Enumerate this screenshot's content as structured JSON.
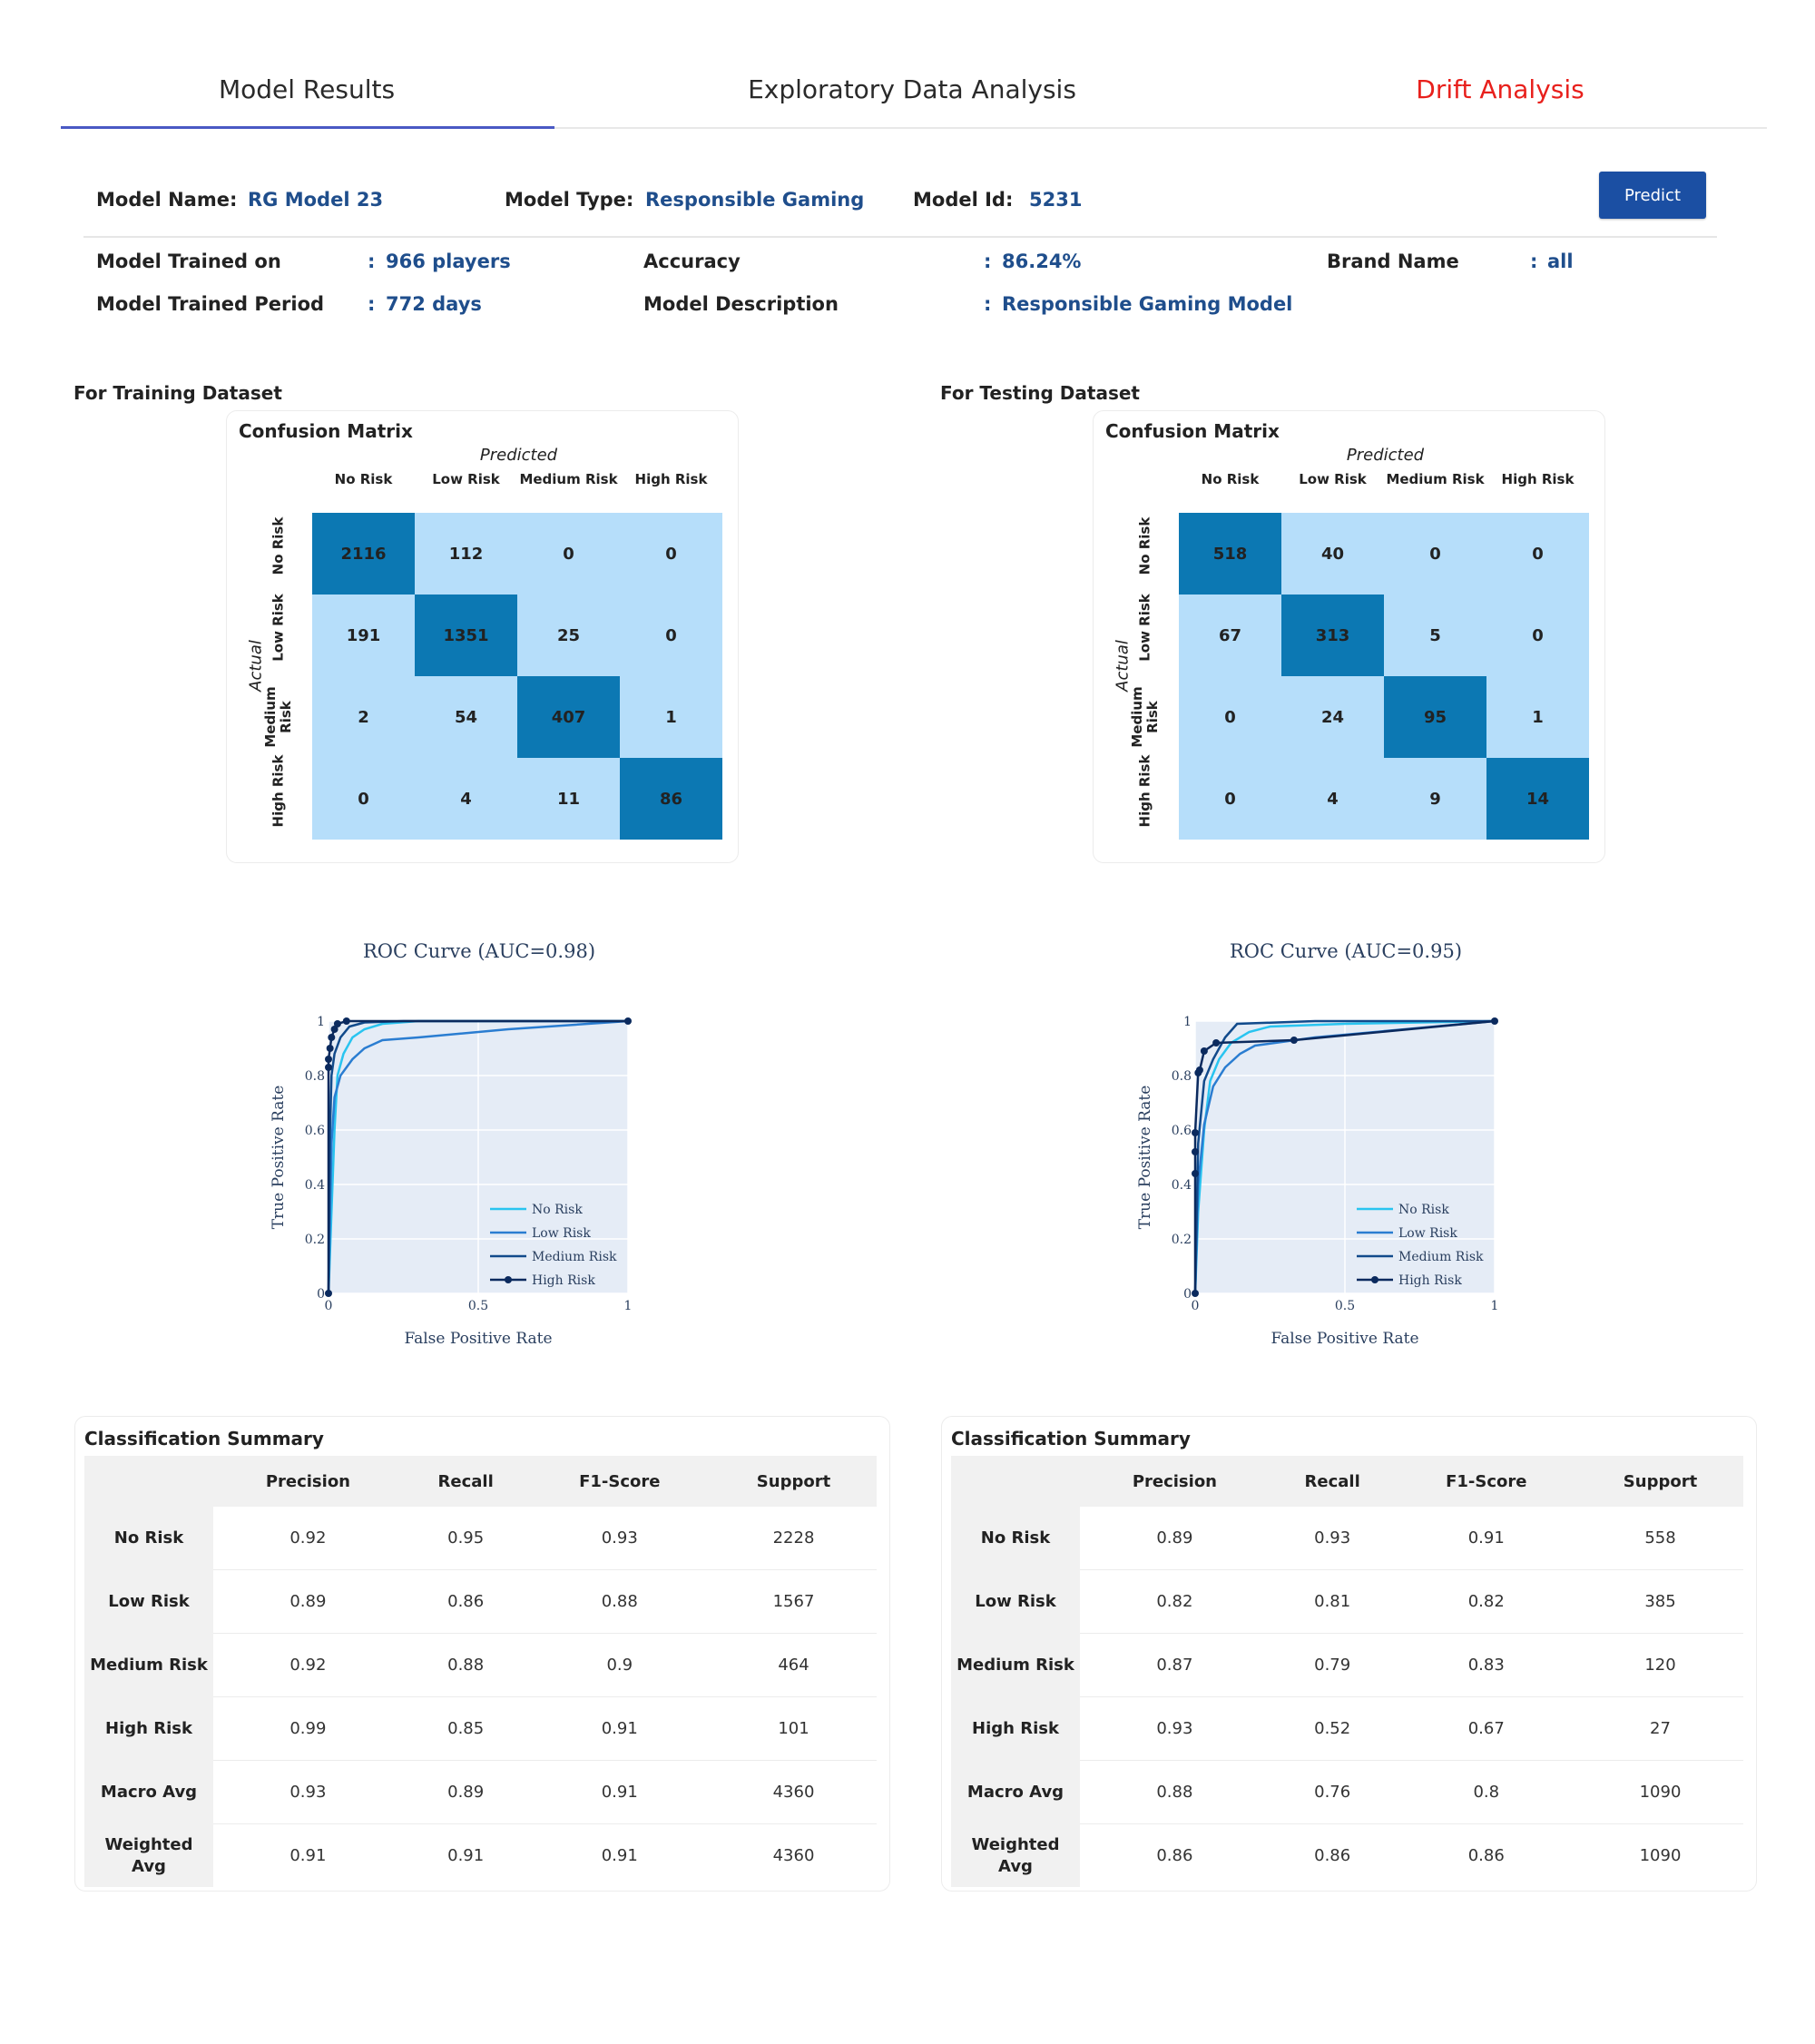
{
  "tabs": [
    {
      "label": "Model Results",
      "active": true
    },
    {
      "label": "Exploratory Data Analysis",
      "active": false
    },
    {
      "label": "Drift Analysis",
      "active": false
    }
  ],
  "model": {
    "name_label": "Model Name:",
    "name": "RG Model 23",
    "type_label": "Model Type:",
    "type": "Responsible Gaming",
    "id_label": "Model Id:",
    "id": "5231",
    "predict_label": "Predict",
    "trained_on_label": "Model Trained on",
    "trained_on": "966 players",
    "accuracy_label": "Accuracy",
    "accuracy": "86.24%",
    "brand_label": "Brand Name",
    "brand": "all",
    "period_label": "Model Trained Period",
    "period": "772 days",
    "description_label": "Model Description",
    "description": "Responsible Gaming Model",
    "colon": ":"
  },
  "training": {
    "section_label": "For Training Dataset",
    "confusion_matrix": {
      "title": "Confusion Matrix",
      "predicted_label": "Predicted",
      "actual_label": "Actual",
      "columns": [
        "No Risk",
        "Low Risk",
        "Medium Risk",
        "High Risk"
      ],
      "rows": [
        "No Risk",
        "Low Risk",
        "Medium Risk",
        "High Risk"
      ],
      "values": [
        [
          2116,
          112,
          0,
          0
        ],
        [
          191,
          1351,
          25,
          0
        ],
        [
          2,
          54,
          407,
          1
        ],
        [
          0,
          4,
          11,
          86
        ]
      ]
    },
    "roc_title": "ROC Curve (AUC=0.98)",
    "summary": {
      "title": "Classification Summary",
      "headers": [
        "",
        "Precision",
        "Recall",
        "F1-Score",
        "Support"
      ],
      "rows": [
        [
          "No Risk",
          "0.92",
          "0.95",
          "0.93",
          "2228"
        ],
        [
          "Low Risk",
          "0.89",
          "0.86",
          "0.88",
          "1567"
        ],
        [
          "Medium Risk",
          "0.92",
          "0.88",
          "0.9",
          "464"
        ],
        [
          "High Risk",
          "0.99",
          "0.85",
          "0.91",
          "101"
        ],
        [
          "Macro Avg",
          "0.93",
          "0.89",
          "0.91",
          "4360"
        ],
        [
          "Weighted Avg",
          "0.91",
          "0.91",
          "0.91",
          "4360"
        ]
      ]
    }
  },
  "testing": {
    "section_label": "For Testing Dataset",
    "confusion_matrix": {
      "title": "Confusion Matrix",
      "predicted_label": "Predicted",
      "actual_label": "Actual",
      "columns": [
        "No Risk",
        "Low Risk",
        "Medium Risk",
        "High Risk"
      ],
      "rows": [
        "No Risk",
        "Low Risk",
        "Medium Risk",
        "High Risk"
      ],
      "values": [
        [
          518,
          40,
          0,
          0
        ],
        [
          67,
          313,
          5,
          0
        ],
        [
          0,
          24,
          95,
          1
        ],
        [
          0,
          4,
          9,
          14
        ]
      ]
    },
    "roc_title": "ROC Curve (AUC=0.95)",
    "summary": {
      "title": "Classification Summary",
      "headers": [
        "",
        "Precision",
        "Recall",
        "F1-Score",
        "Support"
      ],
      "rows": [
        [
          "No Risk",
          "0.89",
          "0.93",
          "0.91",
          "558"
        ],
        [
          "Low Risk",
          "0.82",
          "0.81",
          "0.82",
          "385"
        ],
        [
          "Medium Risk",
          "0.87",
          "0.79",
          "0.83",
          "120"
        ],
        [
          "High Risk",
          "0.93",
          "0.52",
          "0.67",
          "27"
        ],
        [
          "Macro Avg",
          "0.88",
          "0.76",
          "0.8",
          "1090"
        ],
        [
          "Weighted Avg",
          "0.86",
          "0.86",
          "0.86",
          "1090"
        ]
      ]
    }
  },
  "chart_data": [
    {
      "type": "line",
      "title": "ROC Curve (AUC=0.98)",
      "xlabel": "False Positive Rate",
      "ylabel": "True Positive Rate",
      "xlim": [
        0,
        1
      ],
      "ylim": [
        0,
        1
      ],
      "x_ticks": [
        "0",
        "0.5",
        "1"
      ],
      "y_ticks": [
        "0",
        "0.2",
        "0.4",
        "0.6",
        "0.8",
        "1"
      ],
      "legend_position": "bottom-right",
      "grid": true,
      "series": [
        {
          "name": "No Risk",
          "color": "#29c4f0",
          "markers": false,
          "points": [
            [
              0,
              0
            ],
            [
              0.01,
              0.3
            ],
            [
              0.02,
              0.6
            ],
            [
              0.03,
              0.8
            ],
            [
              0.05,
              0.88
            ],
            [
              0.08,
              0.94
            ],
            [
              0.12,
              0.97
            ],
            [
              0.18,
              0.99
            ],
            [
              0.3,
              1
            ],
            [
              1,
              1
            ]
          ]
        },
        {
          "name": "Low Risk",
          "color": "#2a7dd1",
          "markers": false,
          "points": [
            [
              0,
              0
            ],
            [
              0.01,
              0.55
            ],
            [
              0.02,
              0.72
            ],
            [
              0.04,
              0.8
            ],
            [
              0.08,
              0.86
            ],
            [
              0.12,
              0.9
            ],
            [
              0.18,
              0.93
            ],
            [
              0.3,
              0.94
            ],
            [
              0.6,
              0.97
            ],
            [
              1,
              1
            ]
          ]
        },
        {
          "name": "Medium Risk",
          "color": "#114a8b",
          "markers": false,
          "points": [
            [
              0,
              0
            ],
            [
              0.005,
              0.6
            ],
            [
              0.01,
              0.8
            ],
            [
              0.02,
              0.88
            ],
            [
              0.04,
              0.94
            ],
            [
              0.07,
              0.98
            ],
            [
              0.12,
              0.995
            ],
            [
              0.25,
              1
            ],
            [
              1,
              1
            ]
          ]
        },
        {
          "name": "High Risk",
          "color": "#0b2a5e",
          "markers": true,
          "points": [
            [
              0,
              0
            ],
            [
              0.0,
              0.83
            ],
            [
              0.0,
              0.86
            ],
            [
              0.005,
              0.9
            ],
            [
              0.01,
              0.94
            ],
            [
              0.02,
              0.97
            ],
            [
              0.03,
              0.99
            ],
            [
              0.06,
              1
            ],
            [
              1,
              1
            ]
          ]
        }
      ]
    },
    {
      "type": "line",
      "title": "ROC Curve (AUC=0.95)",
      "xlabel": "False Positive Rate",
      "ylabel": "True Positive Rate",
      "xlim": [
        0,
        1
      ],
      "ylim": [
        0,
        1
      ],
      "x_ticks": [
        "0",
        "0.5",
        "1"
      ],
      "y_ticks": [
        "0",
        "0.2",
        "0.4",
        "0.6",
        "0.8",
        "1"
      ],
      "legend_position": "bottom-right",
      "grid": true,
      "series": [
        {
          "name": "No Risk",
          "color": "#29c4f0",
          "markers": false,
          "points": [
            [
              0,
              0
            ],
            [
              0.01,
              0.3
            ],
            [
              0.03,
              0.6
            ],
            [
              0.05,
              0.78
            ],
            [
              0.08,
              0.86
            ],
            [
              0.12,
              0.92
            ],
            [
              0.18,
              0.96
            ],
            [
              0.25,
              0.98
            ],
            [
              0.5,
              0.99
            ],
            [
              1,
              1
            ]
          ]
        },
        {
          "name": "Low Risk",
          "color": "#2a7dd1",
          "markers": false,
          "points": [
            [
              0,
              0
            ],
            [
              0.01,
              0.4
            ],
            [
              0.03,
              0.62
            ],
            [
              0.06,
              0.76
            ],
            [
              0.1,
              0.83
            ],
            [
              0.15,
              0.88
            ],
            [
              0.2,
              0.91
            ],
            [
              0.4,
              0.94
            ],
            [
              0.7,
              0.97
            ],
            [
              1,
              1
            ]
          ]
        },
        {
          "name": "Medium Risk",
          "color": "#114a8b",
          "markers": false,
          "points": [
            [
              0,
              0
            ],
            [
              0.01,
              0.55
            ],
            [
              0.03,
              0.78
            ],
            [
              0.06,
              0.86
            ],
            [
              0.1,
              0.94
            ],
            [
              0.14,
              0.99
            ],
            [
              0.4,
              1
            ],
            [
              1,
              1
            ]
          ]
        },
        {
          "name": "High Risk",
          "color": "#0b2a5e",
          "markers": true,
          "points": [
            [
              0,
              0
            ],
            [
              0.0,
              0.44
            ],
            [
              0.0,
              0.52
            ],
            [
              0.0,
              0.59
            ],
            [
              0.01,
              0.81
            ],
            [
              0.015,
              0.82
            ],
            [
              0.03,
              0.89
            ],
            [
              0.07,
              0.92
            ],
            [
              0.33,
              0.93
            ],
            [
              1,
              1
            ]
          ]
        }
      ]
    }
  ]
}
